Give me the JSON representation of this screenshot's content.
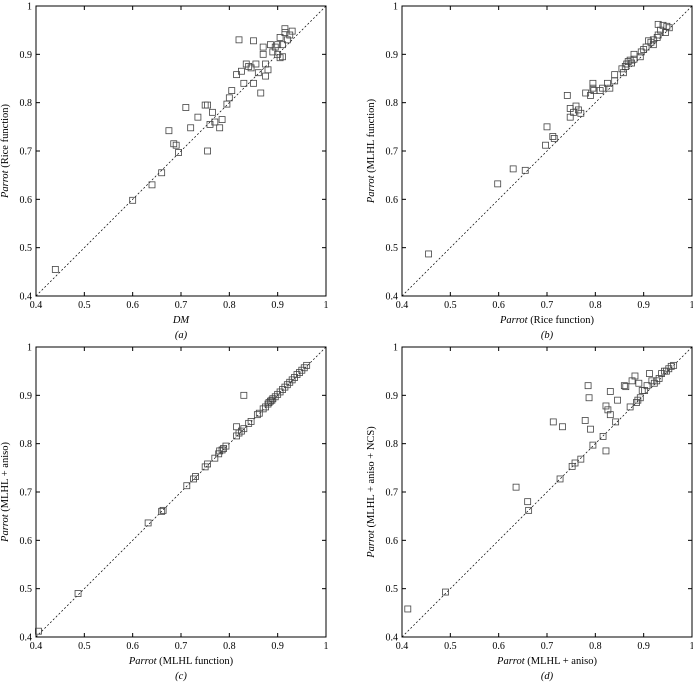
{
  "chart_data": [
    {
      "type": "scatter",
      "panel_label": "(a)",
      "xlabel_italic": "DM",
      "xlabel_rest": "",
      "ylabel_italic": "Parrot",
      "ylabel_rest": " (Rice function)",
      "xlim": [
        0.4,
        1.0
      ],
      "ylim": [
        0.4,
        1.0
      ],
      "ticks": [
        "0.4",
        "0.5",
        "0.6",
        "0.7",
        "0.8",
        "0.9",
        "1"
      ],
      "reference_line": "y = x (dashed)",
      "points": [
        [
          0.44,
          0.455
        ],
        [
          0.6,
          0.598
        ],
        [
          0.64,
          0.63
        ],
        [
          0.66,
          0.655
        ],
        [
          0.675,
          0.742
        ],
        [
          0.685,
          0.715
        ],
        [
          0.69,
          0.712
        ],
        [
          0.695,
          0.697
        ],
        [
          0.71,
          0.79
        ],
        [
          0.72,
          0.748
        ],
        [
          0.735,
          0.77
        ],
        [
          0.75,
          0.795
        ],
        [
          0.755,
          0.795
        ],
        [
          0.755,
          0.7
        ],
        [
          0.76,
          0.755
        ],
        [
          0.765,
          0.78
        ],
        [
          0.77,
          0.76
        ],
        [
          0.78,
          0.748
        ],
        [
          0.785,
          0.765
        ],
        [
          0.795,
          0.797
        ],
        [
          0.8,
          0.81
        ],
        [
          0.805,
          0.825
        ],
        [
          0.815,
          0.858
        ],
        [
          0.82,
          0.93
        ],
        [
          0.825,
          0.865
        ],
        [
          0.83,
          0.84
        ],
        [
          0.835,
          0.88
        ],
        [
          0.84,
          0.875
        ],
        [
          0.845,
          0.872
        ],
        [
          0.85,
          0.928
        ],
        [
          0.85,
          0.84
        ],
        [
          0.855,
          0.88
        ],
        [
          0.86,
          0.862
        ],
        [
          0.865,
          0.82
        ],
        [
          0.87,
          0.9
        ],
        [
          0.875,
          0.88
        ],
        [
          0.875,
          0.855
        ],
        [
          0.88,
          0.868
        ],
        [
          0.885,
          0.92
        ],
        [
          0.89,
          0.905
        ],
        [
          0.895,
          0.915
        ],
        [
          0.9,
          0.92
        ],
        [
          0.9,
          0.9
        ],
        [
          0.905,
          0.935
        ],
        [
          0.905,
          0.893
        ],
        [
          0.91,
          0.92
        ],
        [
          0.915,
          0.953
        ],
        [
          0.915,
          0.945
        ],
        [
          0.92,
          0.93
        ],
        [
          0.925,
          0.94
        ],
        [
          0.93,
          0.948
        ],
        [
          0.91,
          0.895
        ],
        [
          0.87,
          0.915
        ]
      ]
    },
    {
      "type": "scatter",
      "panel_label": "(b)",
      "xlabel_italic": "Parrot",
      "xlabel_rest": " (Rice function)",
      "ylabel_italic": "Parrot",
      "ylabel_rest": " (MLHL function)",
      "xlim": [
        0.4,
        1.0
      ],
      "ylim": [
        0.4,
        1.0
      ],
      "ticks": [
        "0.4",
        "0.5",
        "0.6",
        "0.7",
        "0.8",
        "0.9",
        "1"
      ],
      "reference_line": "y = x (dashed)",
      "points": [
        [
          0.455,
          0.487
        ],
        [
          0.598,
          0.632
        ],
        [
          0.63,
          0.663
        ],
        [
          0.655,
          0.66
        ],
        [
          0.697,
          0.712
        ],
        [
          0.7,
          0.75
        ],
        [
          0.712,
          0.73
        ],
        [
          0.715,
          0.726
        ],
        [
          0.742,
          0.815
        ],
        [
          0.748,
          0.77
        ],
        [
          0.748,
          0.788
        ],
        [
          0.755,
          0.78
        ],
        [
          0.76,
          0.793
        ],
        [
          0.765,
          0.785
        ],
        [
          0.77,
          0.778
        ],
        [
          0.78,
          0.82
        ],
        [
          0.79,
          0.815
        ],
        [
          0.795,
          0.84
        ],
        [
          0.795,
          0.83
        ],
        [
          0.797,
          0.825
        ],
        [
          0.81,
          0.825
        ],
        [
          0.815,
          0.83
        ],
        [
          0.825,
          0.84
        ],
        [
          0.83,
          0.83
        ],
        [
          0.84,
          0.858
        ],
        [
          0.84,
          0.845
        ],
        [
          0.855,
          0.87
        ],
        [
          0.858,
          0.862
        ],
        [
          0.862,
          0.875
        ],
        [
          0.865,
          0.88
        ],
        [
          0.868,
          0.885
        ],
        [
          0.872,
          0.888
        ],
        [
          0.875,
          0.882
        ],
        [
          0.88,
          0.89
        ],
        [
          0.88,
          0.9
        ],
        [
          0.893,
          0.895
        ],
        [
          0.895,
          0.905
        ],
        [
          0.9,
          0.91
        ],
        [
          0.905,
          0.915
        ],
        [
          0.915,
          0.925
        ],
        [
          0.92,
          0.93
        ],
        [
          0.92,
          0.92
        ],
        [
          0.928,
          0.935
        ],
        [
          0.93,
          0.94
        ],
        [
          0.935,
          0.95
        ],
        [
          0.94,
          0.96
        ],
        [
          0.945,
          0.945
        ],
        [
          0.948,
          0.958
        ],
        [
          0.953,
          0.955
        ],
        [
          0.93,
          0.962
        ],
        [
          0.91,
          0.928
        ]
      ]
    },
    {
      "type": "scatter",
      "panel_label": "(c)",
      "xlabel_italic": "Parrot",
      "xlabel_rest": " (MLHL function)",
      "ylabel_italic": "Parrot",
      "ylabel_rest": " (MLHL + aniso)",
      "xlim": [
        0.4,
        1.0
      ],
      "ylim": [
        0.4,
        1.0
      ],
      "ticks": [
        "0.4",
        "0.5",
        "0.6",
        "0.7",
        "0.8",
        "0.9",
        "1"
      ],
      "reference_line": "y = x (dashed)",
      "points": [
        [
          0.405,
          0.412
        ],
        [
          0.487,
          0.49
        ],
        [
          0.632,
          0.636
        ],
        [
          0.66,
          0.66
        ],
        [
          0.663,
          0.662
        ],
        [
          0.712,
          0.713
        ],
        [
          0.726,
          0.727
        ],
        [
          0.73,
          0.732
        ],
        [
          0.75,
          0.752
        ],
        [
          0.755,
          0.758
        ],
        [
          0.77,
          0.77
        ],
        [
          0.778,
          0.779
        ],
        [
          0.78,
          0.785
        ],
        [
          0.785,
          0.787
        ],
        [
          0.788,
          0.79
        ],
        [
          0.793,
          0.795
        ],
        [
          0.815,
          0.816
        ],
        [
          0.815,
          0.835
        ],
        [
          0.82,
          0.822
        ],
        [
          0.825,
          0.826
        ],
        [
          0.83,
          0.831
        ],
        [
          0.83,
          0.9
        ],
        [
          0.84,
          0.842
        ],
        [
          0.845,
          0.846
        ],
        [
          0.858,
          0.86
        ],
        [
          0.862,
          0.863
        ],
        [
          0.87,
          0.872
        ],
        [
          0.875,
          0.876
        ],
        [
          0.88,
          0.882
        ],
        [
          0.882,
          0.885
        ],
        [
          0.885,
          0.888
        ],
        [
          0.888,
          0.89
        ],
        [
          0.89,
          0.893
        ],
        [
          0.895,
          0.897
        ],
        [
          0.9,
          0.902
        ],
        [
          0.905,
          0.907
        ],
        [
          0.91,
          0.912
        ],
        [
          0.915,
          0.917
        ],
        [
          0.92,
          0.922
        ],
        [
          0.925,
          0.927
        ],
        [
          0.93,
          0.932
        ],
        [
          0.935,
          0.937
        ],
        [
          0.94,
          0.943
        ],
        [
          0.945,
          0.947
        ],
        [
          0.95,
          0.952
        ],
        [
          0.955,
          0.957
        ],
        [
          0.96,
          0.962
        ]
      ]
    },
    {
      "type": "scatter",
      "panel_label": "(d)",
      "xlabel_italic": "Parrot",
      "xlabel_rest": " (MLHL + aniso)",
      "ylabel_italic": "Parrot",
      "ylabel_rest": " (MLHL + aniso + NCS)",
      "xlim": [
        0.4,
        1.0
      ],
      "ylim": [
        0.4,
        1.0
      ],
      "ticks": [
        "0.4",
        "0.5",
        "0.6",
        "0.7",
        "0.8",
        "0.9",
        "1"
      ],
      "reference_line": "y = x (dashed)",
      "points": [
        [
          0.412,
          0.458
        ],
        [
          0.49,
          0.493
        ],
        [
          0.636,
          0.71
        ],
        [
          0.66,
          0.68
        ],
        [
          0.662,
          0.662
        ],
        [
          0.713,
          0.845
        ],
        [
          0.727,
          0.727
        ],
        [
          0.732,
          0.835
        ],
        [
          0.752,
          0.753
        ],
        [
          0.758,
          0.76
        ],
        [
          0.77,
          0.768
        ],
        [
          0.779,
          0.848
        ],
        [
          0.785,
          0.92
        ],
        [
          0.787,
          0.895
        ],
        [
          0.79,
          0.83
        ],
        [
          0.795,
          0.797
        ],
        [
          0.816,
          0.815
        ],
        [
          0.822,
          0.878
        ],
        [
          0.822,
          0.785
        ],
        [
          0.826,
          0.87
        ],
        [
          0.831,
          0.908
        ],
        [
          0.831,
          0.86
        ],
        [
          0.842,
          0.845
        ],
        [
          0.846,
          0.89
        ],
        [
          0.86,
          0.92
        ],
        [
          0.863,
          0.918
        ],
        [
          0.872,
          0.876
        ],
        [
          0.876,
          0.93
        ],
        [
          0.882,
          0.94
        ],
        [
          0.885,
          0.885
        ],
        [
          0.888,
          0.89
        ],
        [
          0.89,
          0.925
        ],
        [
          0.893,
          0.895
        ],
        [
          0.897,
          0.91
        ],
        [
          0.902,
          0.91
        ],
        [
          0.907,
          0.92
        ],
        [
          0.912,
          0.945
        ],
        [
          0.917,
          0.93
        ],
        [
          0.922,
          0.925
        ],
        [
          0.927,
          0.93
        ],
        [
          0.932,
          0.935
        ],
        [
          0.937,
          0.945
        ],
        [
          0.943,
          0.95
        ],
        [
          0.947,
          0.95
        ],
        [
          0.952,
          0.955
        ],
        [
          0.957,
          0.96
        ],
        [
          0.962,
          0.962
        ]
      ]
    }
  ]
}
